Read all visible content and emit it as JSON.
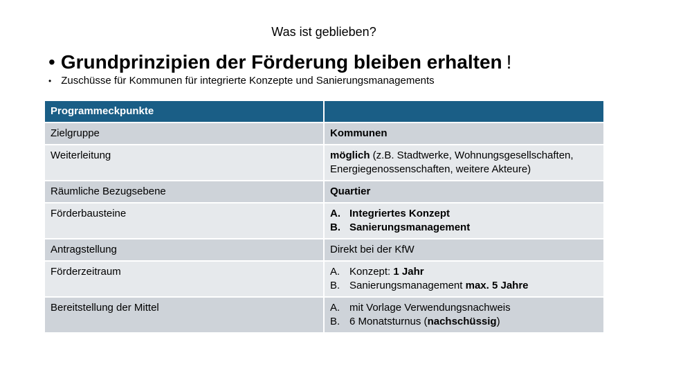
{
  "slide": {
    "title": "Was ist geblieben?",
    "bullet_main": "Grundprinzipien der Förderung bleiben erhalten",
    "bullet_main_tail": "!",
    "bullet_sub": "Zuschüsse für Kommunen für integrierte Konzepte und Sanierungsmanagements"
  },
  "table": {
    "header": {
      "col1": "Programmeckpunkte",
      "col2": ""
    },
    "rows": {
      "r0": {
        "label": "Zielgruppe",
        "value": "Kommunen"
      },
      "r1": {
        "label": "Weiterleitung",
        "value_bold": "möglich",
        "value_rest": " (z.B. Stadtwerke, Wohnungsgesellschaften, Energiegenossenschaften, weitere Akteure)"
      },
      "r2": {
        "label": "Räumliche Bezugsebene",
        "value": "Quartier"
      },
      "r3": {
        "label": "Förderbausteine",
        "a_mark": "A.",
        "a_text": "Integriertes Konzept",
        "b_mark": "B.",
        "b_text": "Sanierungsmanagement"
      },
      "r4": {
        "label": "Antragstellung",
        "value": "Direkt bei der KfW"
      },
      "r5": {
        "label": "Förderzeitraum",
        "a_mark": "A.",
        "a_text": "Konzept: ",
        "a_bold": "1 Jahr",
        "b_mark": "B.",
        "b_text": "Sanierungsmanagement ",
        "b_bold": "max. 5 Jahre"
      },
      "r6": {
        "label": "Bereitstellung der Mittel",
        "a_mark": "A.",
        "a_text": "mit Vorlage Verwendungsnachweis",
        "b_mark": "B.",
        "b_text": "6 Monatsturnus (",
        "b_bold": "nachschüssig",
        "b_tail": ")"
      }
    }
  }
}
